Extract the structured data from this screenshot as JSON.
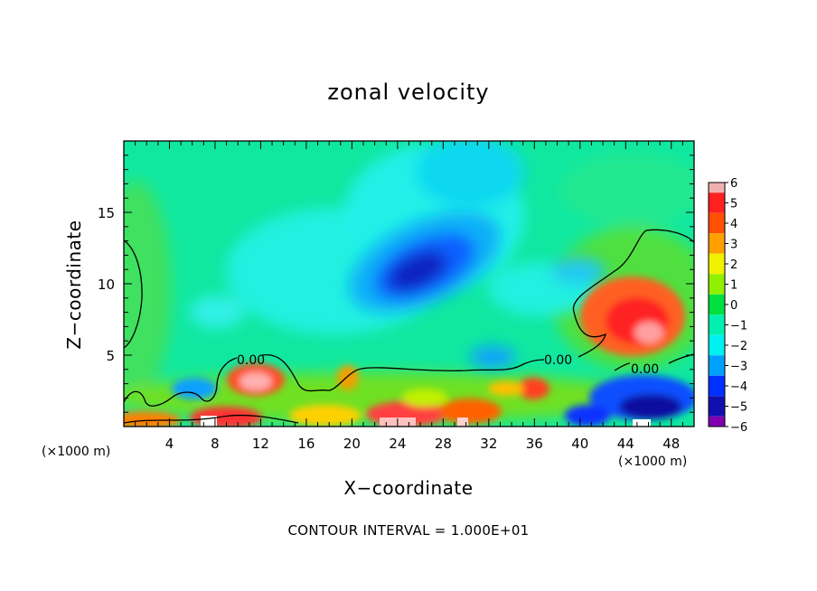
{
  "chart_data": {
    "type": "heatmap",
    "title": "zonal velocity",
    "xlabel": "X−coordinate",
    "ylabel": "Z−coordinate",
    "x_unit_label": "(×1000 m)",
    "xlim": [
      0,
      50
    ],
    "ylim": [
      0,
      20
    ],
    "x_ticks": [
      "4",
      "8",
      "12",
      "16",
      "20",
      "24",
      "28",
      "32",
      "36",
      "40",
      "44",
      "48"
    ],
    "y_ticks": [
      "5",
      "10",
      "15"
    ],
    "colorbar": {
      "labels": [
        "6",
        "5",
        "4",
        "3",
        "2",
        "1",
        "0",
        "−1",
        "−2",
        "−3",
        "−4",
        "−5",
        "−6"
      ],
      "range": [
        -6,
        6
      ],
      "colors": [
        "#f0b0b0",
        "#ff2020",
        "#ff5000",
        "#ffa000",
        "#f0f000",
        "#90f000",
        "#00e040",
        "#00f0b0",
        "#00f0f0",
        "#00a0ff",
        "#0030ff",
        "#1010b0",
        "#8000b0"
      ]
    },
    "contour_label": "0.00",
    "contour_interval_text": "CONTOUR INTERVAL = 1.000E+01",
    "features": [
      {
        "x": 26,
        "z": 11.5,
        "value": -5.5
      },
      {
        "x": 11.5,
        "z": 3.3,
        "value": 4.5
      },
      {
        "x": 45.5,
        "z": 7.5,
        "value": 4.5
      },
      {
        "x": 46,
        "z": 2,
        "value": -4.5
      },
      {
        "x": 4,
        "z": 2.5,
        "value": -3.5
      },
      {
        "x": 33,
        "z": 4.5,
        "value": -3
      }
    ]
  },
  "colors": {
    "background": "#ffffff",
    "axis": "#000000",
    "field_base": "#10e8a0"
  }
}
